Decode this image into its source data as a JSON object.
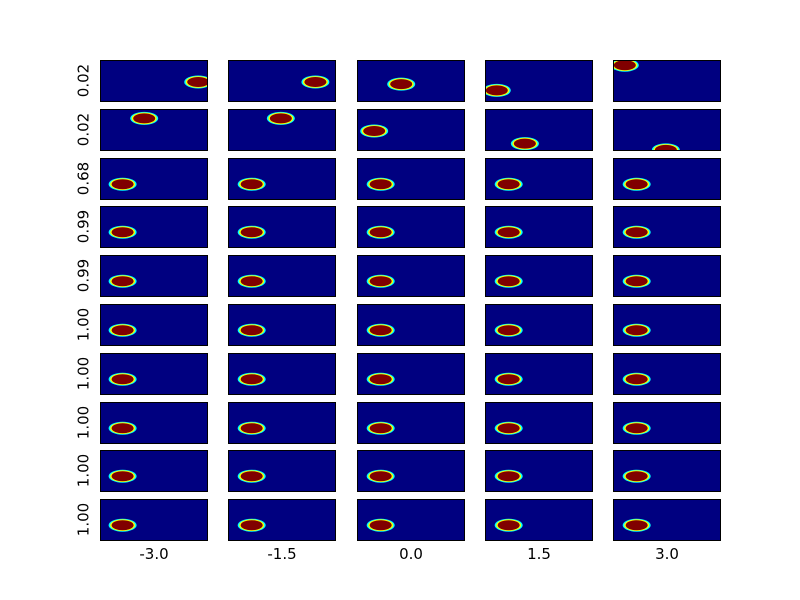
{
  "chart_data": {
    "type": "heatmap",
    "title": "",
    "xlabel": "",
    "ylabel": "",
    "column_labels": [
      "-3.0",
      "-1.5",
      "0.0",
      "1.5",
      "3.0"
    ],
    "row_labels": [
      "0.02",
      "0.02",
      "0.68",
      "0.99",
      "0.99",
      "1.00",
      "1.00",
      "1.00",
      "1.00",
      "1.00"
    ],
    "colormap": "jet",
    "colors": {
      "background": "#000080",
      "blob": "#800000",
      "edge_cyan": "#00ffff",
      "edge_yellow": "#ffff00"
    },
    "blobs": [
      [
        {
          "x": 0.9,
          "y": 0.5
        },
        {
          "x": 0.8,
          "y": 0.5
        },
        {
          "x": 0.4,
          "y": 0.55
        },
        {
          "x": 0.1,
          "y": 0.7
        },
        {
          "x": 0.1,
          "y": 0.1
        }
      ],
      [
        {
          "x": 0.4,
          "y": 0.2
        },
        {
          "x": 0.48,
          "y": 0.2
        },
        {
          "x": 0.15,
          "y": 0.5
        },
        {
          "x": 0.36,
          "y": 0.8
        },
        {
          "x": 0.48,
          "y": 0.95
        }
      ],
      [
        {
          "x": 0.2,
          "y": 0.6
        },
        {
          "x": 0.21,
          "y": 0.6
        },
        {
          "x": 0.21,
          "y": 0.6
        },
        {
          "x": 0.21,
          "y": 0.6
        },
        {
          "x": 0.21,
          "y": 0.6
        }
      ],
      [
        {
          "x": 0.2,
          "y": 0.6
        },
        {
          "x": 0.21,
          "y": 0.6
        },
        {
          "x": 0.21,
          "y": 0.6
        },
        {
          "x": 0.21,
          "y": 0.6
        },
        {
          "x": 0.21,
          "y": 0.6
        }
      ],
      [
        {
          "x": 0.2,
          "y": 0.6
        },
        {
          "x": 0.21,
          "y": 0.6
        },
        {
          "x": 0.21,
          "y": 0.6
        },
        {
          "x": 0.21,
          "y": 0.6
        },
        {
          "x": 0.21,
          "y": 0.6
        }
      ],
      [
        {
          "x": 0.2,
          "y": 0.6
        },
        {
          "x": 0.21,
          "y": 0.6
        },
        {
          "x": 0.21,
          "y": 0.6
        },
        {
          "x": 0.21,
          "y": 0.6
        },
        {
          "x": 0.21,
          "y": 0.6
        }
      ],
      [
        {
          "x": 0.2,
          "y": 0.6
        },
        {
          "x": 0.21,
          "y": 0.6
        },
        {
          "x": 0.21,
          "y": 0.6
        },
        {
          "x": 0.21,
          "y": 0.6
        },
        {
          "x": 0.21,
          "y": 0.6
        }
      ],
      [
        {
          "x": 0.2,
          "y": 0.6
        },
        {
          "x": 0.21,
          "y": 0.6
        },
        {
          "x": 0.21,
          "y": 0.6
        },
        {
          "x": 0.21,
          "y": 0.6
        },
        {
          "x": 0.21,
          "y": 0.6
        }
      ],
      [
        {
          "x": 0.2,
          "y": 0.6
        },
        {
          "x": 0.21,
          "y": 0.6
        },
        {
          "x": 0.21,
          "y": 0.6
        },
        {
          "x": 0.21,
          "y": 0.6
        },
        {
          "x": 0.21,
          "y": 0.6
        }
      ],
      [
        {
          "x": 0.2,
          "y": 0.6
        },
        {
          "x": 0.21,
          "y": 0.6
        },
        {
          "x": 0.21,
          "y": 0.6
        },
        {
          "x": 0.21,
          "y": 0.6
        },
        {
          "x": 0.21,
          "y": 0.6
        }
      ]
    ]
  }
}
